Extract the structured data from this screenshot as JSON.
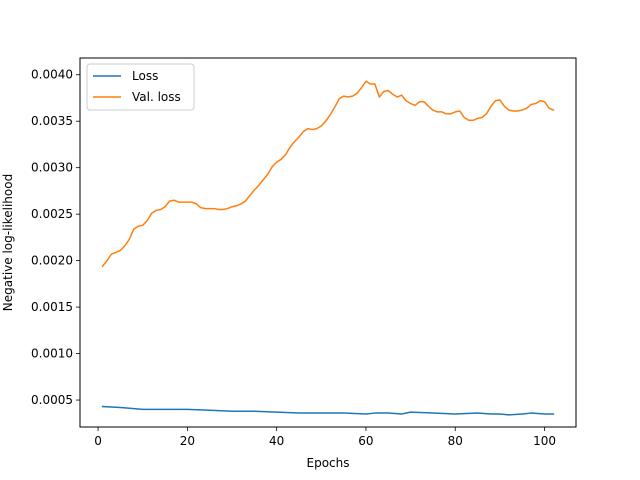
{
  "chart_data": {
    "type": "line",
    "xlabel": "Epochs",
    "ylabel": "Negative log-likelihood",
    "xlim": [
      -4.05,
      107.05
    ],
    "ylim": [
      0.00021,
      0.00418
    ],
    "xticks": [
      0,
      20,
      40,
      60,
      80,
      100
    ],
    "yticks": [
      0.0005,
      0.001,
      0.0015,
      0.002,
      0.0025,
      0.003,
      0.0035,
      0.004
    ],
    "xtick_labels": [
      "0",
      "20",
      "40",
      "60",
      "80",
      "100"
    ],
    "ytick_labels": [
      "0.0005",
      "0.0010",
      "0.0015",
      "0.0020",
      "0.0025",
      "0.0030",
      "0.0035",
      "0.0040"
    ],
    "grid": false,
    "legend_position": "upper-left",
    "series": [
      {
        "name": "Loss",
        "color": "#1f77b4",
        "x": [
          1,
          5,
          10,
          15,
          20,
          25,
          30,
          35,
          40,
          45,
          50,
          55,
          60,
          62,
          65,
          68,
          70,
          75,
          80,
          85,
          88,
          90,
          92,
          95,
          97,
          100,
          102
        ],
        "y": [
          0.00043,
          0.00042,
          0.0004,
          0.0004,
          0.0004,
          0.00039,
          0.00038,
          0.00038,
          0.00037,
          0.00036,
          0.00036,
          0.00036,
          0.00035,
          0.00036,
          0.00036,
          0.00035,
          0.00037,
          0.00036,
          0.00035,
          0.00036,
          0.00035,
          0.00035,
          0.00034,
          0.00035,
          0.00036,
          0.00035,
          0.00035
        ]
      },
      {
        "name": "Val. loss",
        "color": "#ff7f0e",
        "x": [
          1,
          2,
          3,
          4,
          5,
          6,
          7,
          8,
          9,
          10,
          11,
          12,
          13,
          14,
          15,
          16,
          17,
          18,
          19,
          20,
          21,
          22,
          23,
          24,
          25,
          26,
          27,
          28,
          29,
          30,
          31,
          32,
          33,
          34,
          35,
          36,
          37,
          38,
          39,
          40,
          41,
          42,
          43,
          44,
          45,
          46,
          47,
          48,
          49,
          50,
          51,
          52,
          53,
          54,
          55,
          56,
          57,
          58,
          59,
          60,
          61,
          62,
          63,
          64,
          65,
          66,
          67,
          68,
          69,
          70,
          71,
          72,
          73,
          74,
          75,
          76,
          77,
          78,
          79,
          80,
          81,
          82,
          83,
          84,
          85,
          86,
          87,
          88,
          89,
          90,
          91,
          92,
          93,
          94,
          95,
          96,
          97,
          98,
          99,
          100,
          101,
          102
        ],
        "y": [
          0.00194,
          0.002,
          0.00207,
          0.00209,
          0.00211,
          0.00216,
          0.00223,
          0.00234,
          0.00237,
          0.00238,
          0.00243,
          0.00251,
          0.00254,
          0.00255,
          0.00258,
          0.00264,
          0.00265,
          0.00263,
          0.00263,
          0.00263,
          0.00263,
          0.00261,
          0.00257,
          0.00256,
          0.00256,
          0.00256,
          0.00255,
          0.00255,
          0.00256,
          0.00258,
          0.00259,
          0.00261,
          0.00264,
          0.0027,
          0.00276,
          0.00281,
          0.00287,
          0.00293,
          0.00301,
          0.00306,
          0.00309,
          0.00314,
          0.00322,
          0.00328,
          0.00333,
          0.00339,
          0.00342,
          0.00341,
          0.00342,
          0.00345,
          0.0035,
          0.00357,
          0.00365,
          0.00374,
          0.00377,
          0.00376,
          0.00377,
          0.0038,
          0.00386,
          0.00393,
          0.0039,
          0.0039,
          0.00376,
          0.00382,
          0.00383,
          0.00379,
          0.00376,
          0.00378,
          0.00372,
          0.00369,
          0.00367,
          0.00371,
          0.00371,
          0.00366,
          0.00362,
          0.0036,
          0.0036,
          0.00358,
          0.00358,
          0.0036,
          0.00361,
          0.00354,
          0.00351,
          0.00351,
          0.00353,
          0.00354,
          0.00358,
          0.00366,
          0.00372,
          0.00373,
          0.00366,
          0.00362,
          0.00361,
          0.00361,
          0.00362,
          0.00364,
          0.00368,
          0.00369,
          0.00372,
          0.00371,
          0.00364,
          0.00362
        ]
      }
    ]
  }
}
